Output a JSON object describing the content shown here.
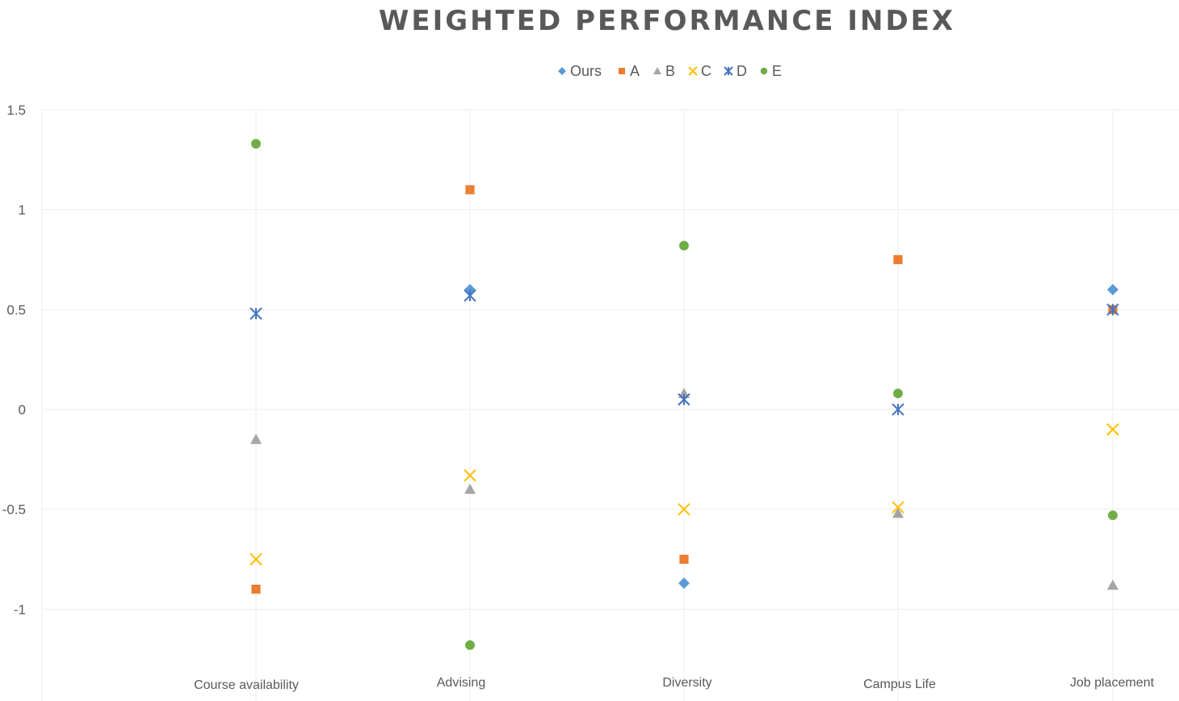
{
  "chart_data": {
    "type": "scatter",
    "title": "WEIGHTED PERFORMANCE INDEX",
    "categories": [
      "Course availability",
      "Advising",
      "Diversity",
      "Campus Life",
      "Job placement"
    ],
    "ylim": [
      -1.5,
      1.5
    ],
    "yticks": [
      "1.5",
      "1",
      "0.5",
      "0",
      "-0.5",
      "-1"
    ],
    "ytick_values": [
      1.5,
      1,
      0.5,
      0,
      -0.5,
      -1
    ],
    "grid": true,
    "legend_position": "top",
    "series": [
      {
        "name": "Ours",
        "marker": "diamond",
        "color": "#5b9bd5",
        "values": [
          null,
          0.6,
          -0.87,
          null,
          0.6
        ]
      },
      {
        "name": "A",
        "marker": "square",
        "color": "#ed7d31",
        "values": [
          -0.9,
          1.1,
          -0.75,
          0.75,
          0.5
        ]
      },
      {
        "name": "B",
        "marker": "triangle",
        "color": "#a5a5a5",
        "values": [
          -0.15,
          -0.4,
          0.08,
          -0.52,
          -0.88
        ]
      },
      {
        "name": "C",
        "marker": "x",
        "color": "#ffc000",
        "values": [
          -0.75,
          -0.33,
          -0.5,
          -0.49,
          -0.1
        ]
      },
      {
        "name": "D",
        "marker": "star",
        "color": "#4472c4",
        "values": [
          0.48,
          0.57,
          0.05,
          0.0,
          0.5
        ]
      },
      {
        "name": "E",
        "marker": "circle",
        "color": "#70ad47",
        "values": [
          1.33,
          -1.18,
          0.82,
          0.08,
          -0.53
        ]
      }
    ]
  }
}
